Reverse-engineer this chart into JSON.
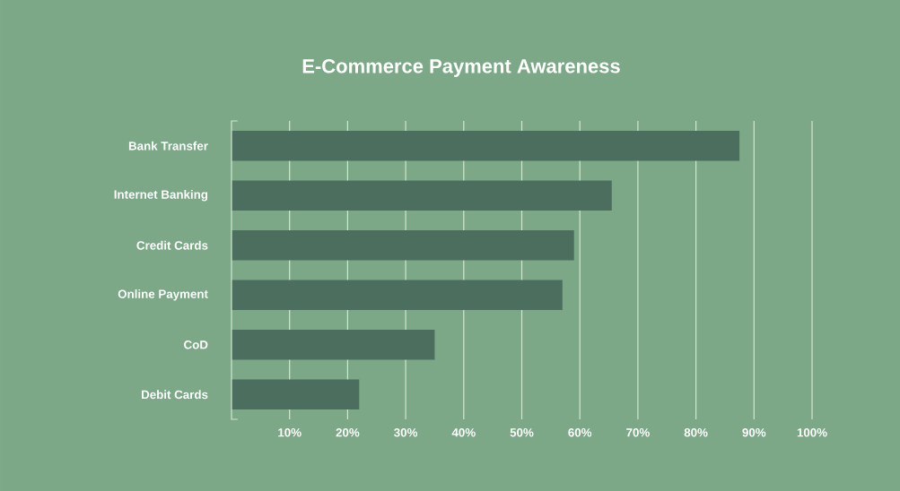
{
  "chart_data": {
    "type": "bar",
    "orientation": "horizontal",
    "title": "E-Commerce Payment Awareness",
    "categories": [
      "Bank Transfer",
      "Internet Banking",
      "Credit Cards",
      "Online Payment",
      "CoD",
      "Debit Cards"
    ],
    "values": [
      87.5,
      65.5,
      59,
      57,
      35,
      22
    ],
    "color": "#4b6e5e",
    "xlim": [
      0,
      100
    ],
    "xticks": [
      {
        "value": 10,
        "label": "10%"
      },
      {
        "value": 20,
        "label": "20%"
      },
      {
        "value": 30,
        "label": "30%"
      },
      {
        "value": 40,
        "label": "40%"
      },
      {
        "value": 50,
        "label": "50%"
      },
      {
        "value": 60,
        "label": "60%"
      },
      {
        "value": 70,
        "label": "70%"
      },
      {
        "value": 80,
        "label": "80%"
      },
      {
        "value": 90,
        "label": "90%"
      },
      {
        "value": 100,
        "label": "100%"
      }
    ],
    "grid": "x"
  }
}
